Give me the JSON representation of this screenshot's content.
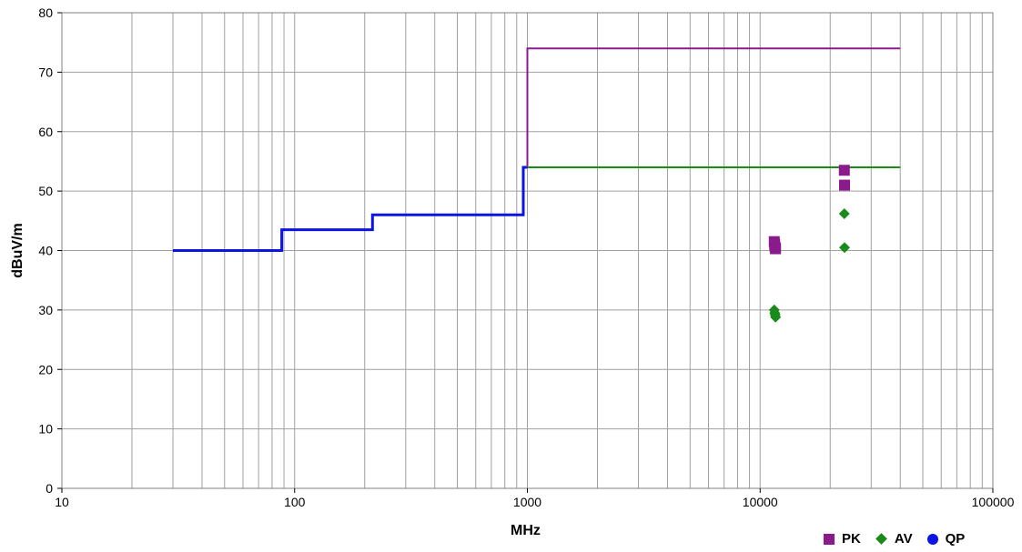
{
  "chart_data": {
    "type": "scatter",
    "title": "",
    "xlabel": "MHz",
    "ylabel": "dBuV/m",
    "xscale": "log",
    "xlim": [
      10,
      100000
    ],
    "ylim": [
      0,
      80
    ],
    "xticks": [
      "10",
      "100",
      "1000",
      "10000",
      "100000"
    ],
    "yticks": [
      "0",
      "10",
      "20",
      "30",
      "40",
      "50",
      "60",
      "70",
      "80"
    ],
    "grid": true,
    "legend_position": "bottom-right",
    "limit_lines": [
      {
        "color": "#0a14e6",
        "x": [
          30,
          88,
          88,
          216,
          216,
          960,
          960,
          1000
        ],
        "y": [
          40,
          40,
          43.5,
          43.5,
          46,
          46,
          54,
          54
        ]
      },
      {
        "color": "#8b1a8b",
        "x": [
          1000,
          1000,
          40000
        ],
        "y": [
          54,
          74,
          74
        ]
      },
      {
        "color": "#1a8a1a",
        "x": [
          1000,
          40000
        ],
        "y": [
          54,
          54
        ]
      }
    ],
    "series": [
      {
        "name": "PK",
        "marker": "square",
        "color": "#8b1a8b",
        "x": [
          11500,
          11550,
          11600,
          11650,
          23000,
          23050
        ],
        "y": [
          41.5,
          41.0,
          40.5,
          40.3,
          53.5,
          51.0
        ]
      },
      {
        "name": "AV",
        "marker": "diamond",
        "color": "#1a8a1a",
        "x": [
          11500,
          11550,
          11600,
          11650,
          23000,
          23050
        ],
        "y": [
          30.0,
          29.5,
          29.2,
          28.8,
          46.2,
          40.5
        ]
      },
      {
        "name": "QP",
        "marker": "circle",
        "color": "#0a14e6",
        "x": [],
        "y": []
      }
    ]
  }
}
